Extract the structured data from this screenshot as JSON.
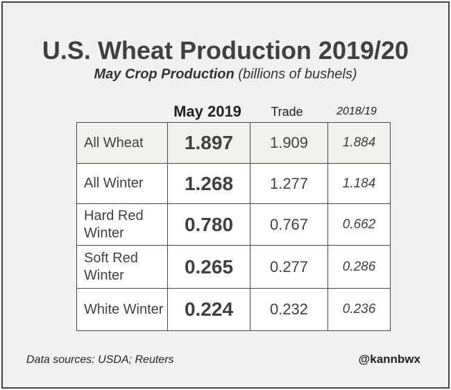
{
  "header": {
    "title": "U.S. Wheat Production 2019/20",
    "subtitle": {
      "main": "May Crop Production",
      "note": "(billions of bushels)"
    }
  },
  "table": {
    "columns": [
      "May 2019",
      "Trade",
      "2018/19"
    ],
    "rows": [
      [
        "All Wheat",
        "1.897",
        "1.909",
        "1.884"
      ],
      [
        "All Winter",
        "1.268",
        "1.277",
        "1.184"
      ],
      [
        "Hard Red Winter",
        "0.780",
        "0.767",
        "0.662"
      ],
      [
        "Soft Red Winter",
        "0.265",
        "0.277",
        "0.286"
      ],
      [
        "White Winter",
        "0.224",
        "0.232",
        "0.236"
      ]
    ]
  },
  "footer": {
    "source": "Data sources: USDA; Reuters",
    "handle": "@kannbwx"
  }
}
